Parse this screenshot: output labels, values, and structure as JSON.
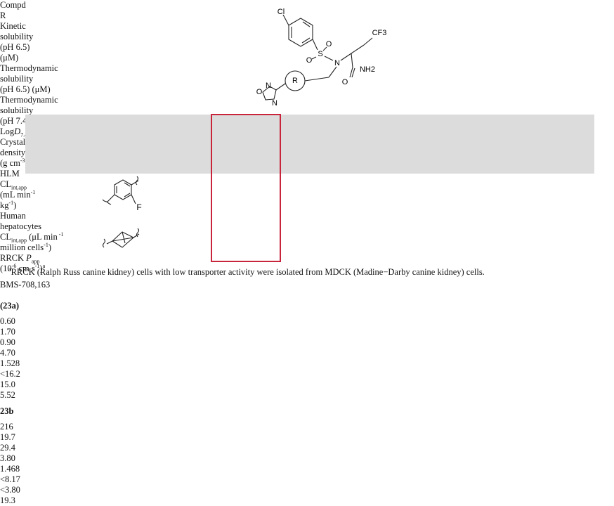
{
  "structure": {
    "atoms": [
      "Cl",
      "S",
      "O",
      "O",
      "N",
      "CF3",
      "NH2",
      "O",
      "R",
      "O",
      "N",
      "N"
    ]
  },
  "table": {
    "header": [
      [
        [
          "Compd"
        ]
      ],
      [
        [
          "R"
        ]
      ],
      [
        [
          "Kinetic"
        ],
        [
          "solubility"
        ],
        [
          "(pH 6.5)"
        ],
        [
          "(μM)"
        ]
      ],
      [
        [
          "Thermodynamic"
        ],
        [
          "solubility"
        ],
        [
          "(pH 6.5) (μM)"
        ]
      ],
      [
        [
          "Thermodynamic"
        ],
        [
          "solubility"
        ],
        [
          "(pH 7.4) (μM)"
        ]
      ],
      [
        [
          "Log",
          {
            "i": "D"
          },
          {
            "sub": "7.4"
          }
        ]
      ],
      [
        [
          "Crystal"
        ],
        [
          "density"
        ],
        [
          "(g cm",
          {
            "sup": "-3"
          },
          ")"
        ]
      ],
      [
        [
          "HLM"
        ],
        [
          "CL",
          {
            "sub": "int,app"
          }
        ],
        [
          "(mL min",
          {
            "sup": "-1"
          }
        ],
        [
          "kg",
          {
            "sup": "-1"
          },
          ")"
        ]
      ],
      [
        [
          "Human"
        ],
        [
          "hepatocytes"
        ],
        [
          "CL",
          {
            "sub": "int,app"
          },
          " (μL min",
          {
            "sup": " -1"
          }
        ],
        [
          "million cells",
          {
            "sup": "-1"
          },
          ")"
        ]
      ],
      [
        [
          "RRCK ",
          {
            "i": "P"
          },
          {
            "sub": "app"
          }
        ],
        [
          "(10",
          {
            "sup": "-6"
          },
          " cm s",
          {
            "sup": "-1"
          },
          ")",
          {
            "sup": "a"
          }
        ]
      ]
    ],
    "rows": [
      {
        "compd": [
          "BMS-708,163",
          "(23a)"
        ],
        "r_label": "F",
        "values": [
          "0.60",
          "1.70",
          "0.90",
          "4.70",
          "1.528",
          "<16.2",
          "15.0",
          "5.52"
        ]
      },
      {
        "compd": [
          "23b"
        ],
        "values": [
          "216",
          "19.7",
          "29.4",
          "3.80",
          "1.468",
          "<8.17",
          "<3.80",
          "19.3"
        ]
      }
    ]
  },
  "footnote": {
    "mark": "a",
    "text": "RRCK (Ralph Russ canine kidney) cells with low transporter activity were isolated from MDCK (Madine−Darby canine kidney) cells."
  }
}
